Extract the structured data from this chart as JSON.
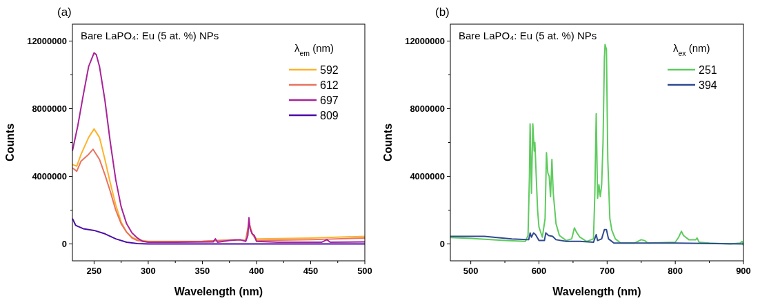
{
  "chart_data": [
    {
      "type": "line",
      "title": "Bare LaPO₄:  Eu (5 at. %) NPs",
      "xlabel": "Wavelength (nm)",
      "ylabel": "Counts",
      "legend_title": "λ$_{em}$ (nm)",
      "legend": "top right",
      "annotations": [
        "(a)"
      ],
      "xlim": [
        230,
        500
      ],
      "ylim": [
        -1000000,
        13000000
      ],
      "xticks": [
        {
          "value": 250,
          "label": "250"
        },
        {
          "value": 275,
          "label": null
        },
        300,
        {
          "value": 325,
          "label": null
        },
        350,
        {
          "value": 375,
          "label": null
        },
        400,
        {
          "value": 425,
          "label": null
        },
        450,
        {
          "value": 475,
          "label": null
        },
        500
      ],
      "yticks": [
        0,
        {
          "value": 2000000,
          "label": null
        },
        4000000,
        {
          "value": 6000000,
          "label": null
        },
        8000000,
        {
          "value": 10000000,
          "label": null
        },
        12000000
      ],
      "series": [
        {
          "name": "592",
          "color": "#fdb32b",
          "x": [
            230,
            234,
            238,
            245,
            250,
            255,
            260,
            265,
            270,
            275,
            280,
            285,
            290,
            300,
            350,
            380,
            390,
            393,
            396,
            400,
            450,
            500
          ],
          "values": [
            4700000,
            4600000,
            5300000,
            6300000,
            6800000,
            6300000,
            5000000,
            3600000,
            2300000,
            1300000,
            700000,
            400000,
            250000,
            150000,
            150000,
            250000,
            200000,
            1300000,
            600000,
            300000,
            350000,
            450000
          ]
        },
        {
          "name": "612",
          "color": "#e8735f",
          "x": [
            230,
            234,
            238,
            245,
            249,
            255,
            260,
            265,
            270,
            275,
            280,
            285,
            290,
            300,
            350,
            380,
            390,
            393,
            396,
            400,
            450,
            500
          ],
          "values": [
            4500000,
            4300000,
            4900000,
            5300000,
            5600000,
            5000000,
            4100000,
            3100000,
            2000000,
            1200000,
            700000,
            350000,
            200000,
            120000,
            150000,
            250000,
            200000,
            1200000,
            600000,
            200000,
            250000,
            350000
          ]
        },
        {
          "name": "697",
          "color": "#a8239a",
          "x": [
            230,
            235,
            240,
            245,
            250,
            252,
            255,
            260,
            265,
            270,
            275,
            280,
            285,
            290,
            295,
            300,
            320,
            360,
            362,
            364,
            375,
            385,
            390,
            392,
            393,
            394,
            396,
            398,
            400,
            420,
            460,
            465,
            468,
            500
          ],
          "values": [
            5500000,
            7000000,
            8800000,
            10500000,
            11300000,
            11200000,
            10500000,
            8500000,
            6000000,
            3800000,
            2200000,
            1200000,
            650000,
            350000,
            150000,
            100000,
            100000,
            120000,
            300000,
            100000,
            200000,
            250000,
            150000,
            500000,
            1550000,
            900000,
            600000,
            500000,
            150000,
            100000,
            100000,
            250000,
            100000,
            120000
          ]
        },
        {
          "name": "809",
          "color": "#4b0ca8",
          "x": [
            230,
            233,
            240,
            250,
            260,
            270,
            280,
            290,
            300,
            500
          ],
          "values": [
            1500000,
            1100000,
            900000,
            800000,
            600000,
            300000,
            100000,
            20000,
            0,
            0
          ]
        }
      ]
    },
    {
      "type": "line",
      "title": "Bare LaPO₄:  Eu (5 at. %) NPs",
      "xlabel": "Wavelength (nm)",
      "ylabel": "Counts",
      "legend_title": "λ$_{ex}$ (nm)",
      "legend": "top right",
      "annotations": [
        "(b)"
      ],
      "xlim": [
        470,
        900
      ],
      "ylim": [
        -1000000,
        13000000
      ],
      "xticks": [
        500,
        {
          "value": 550,
          "label": null
        },
        600,
        {
          "value": 650,
          "label": null
        },
        700,
        {
          "value": 750,
          "label": null
        },
        800,
        {
          "value": 850,
          "label": null
        },
        900
      ],
      "yticks": [
        0,
        {
          "value": 2000000,
          "label": null
        },
        4000000,
        {
          "value": 6000000,
          "label": null
        },
        8000000,
        {
          "value": 10000000,
          "label": null
        },
        12000000
      ],
      "series": [
        {
          "name": "251",
          "color": "#5ecb5e",
          "x": [
            470,
            500,
            550,
            580,
            584,
            586,
            587,
            589,
            591,
            593,
            594,
            596,
            598,
            600,
            605,
            609,
            611,
            613,
            615,
            617,
            619,
            621,
            625,
            630,
            640,
            648,
            652,
            655,
            660,
            670,
            680,
            682,
            684,
            686,
            688,
            690,
            692,
            694,
            696,
            697,
            699,
            701,
            704,
            707,
            712,
            720,
            740,
            750,
            755,
            760,
            800,
            805,
            809,
            812,
            820,
            830,
            832,
            835,
            850,
            880,
            895,
            898,
            900
          ],
          "values": [
            380000,
            330000,
            200000,
            150000,
            500000,
            4000000,
            7100000,
            3000000,
            7100000,
            5500000,
            6000000,
            4000000,
            2000000,
            1000000,
            400000,
            1500000,
            5400000,
            4200000,
            4000000,
            2800000,
            5000000,
            3000000,
            1200000,
            500000,
            200000,
            300000,
            950000,
            700000,
            400000,
            150000,
            300000,
            3000000,
            7700000,
            2700000,
            3500000,
            2800000,
            3500000,
            6000000,
            11000000,
            11800000,
            11500000,
            5000000,
            1500000,
            800000,
            300000,
            50000,
            50000,
            250000,
            200000,
            50000,
            100000,
            400000,
            750000,
            500000,
            250000,
            250000,
            350000,
            100000,
            50000,
            0,
            50000,
            150000,
            -100000
          ]
        },
        {
          "name": "394",
          "color": "#2e4a8f",
          "x": [
            470,
            520,
            560,
            585,
            587,
            589,
            592,
            595,
            600,
            608,
            610,
            614,
            620,
            625,
            640,
            660,
            680,
            684,
            686,
            692,
            696,
            699,
            702,
            710,
            800,
            900
          ],
          "values": [
            450000,
            450000,
            300000,
            250000,
            650000,
            400000,
            650000,
            550000,
            200000,
            200000,
            650000,
            500000,
            450000,
            250000,
            150000,
            150000,
            100000,
            550000,
            200000,
            300000,
            850000,
            850000,
            300000,
            50000,
            50000,
            0
          ]
        }
      ]
    }
  ]
}
